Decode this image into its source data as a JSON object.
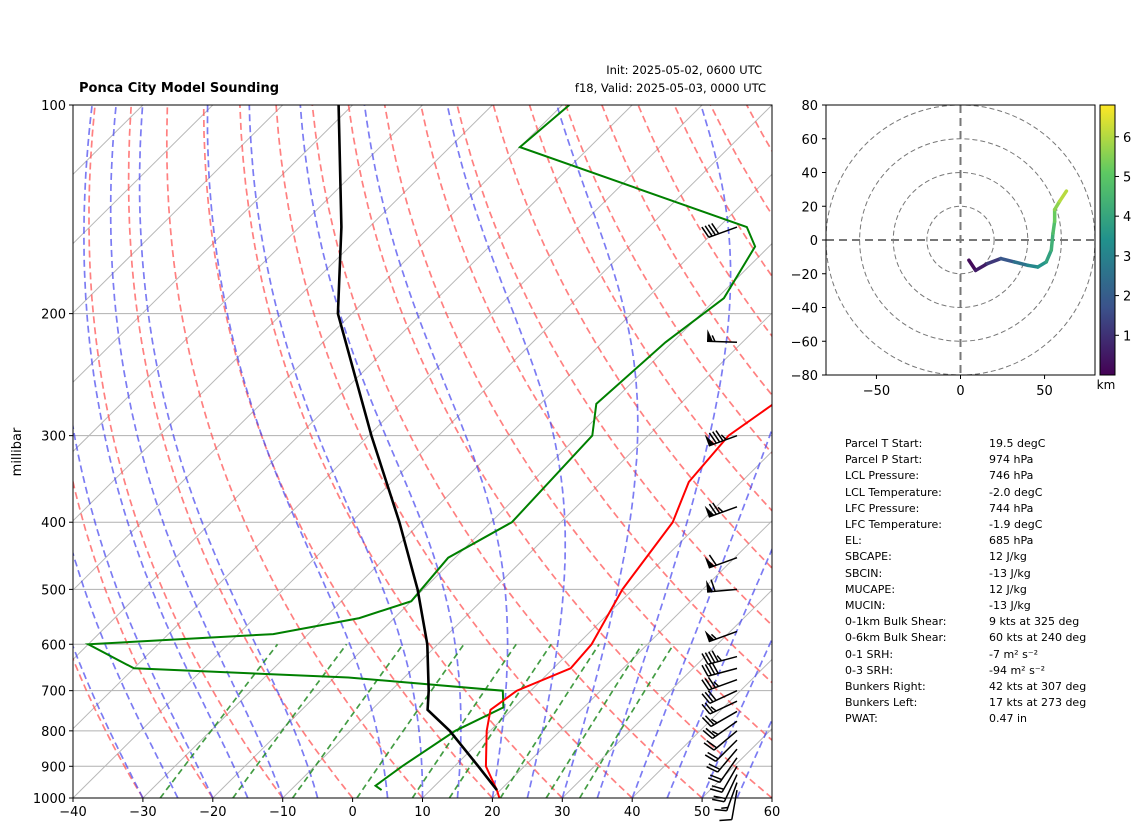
{
  "header": {
    "title": "Ponca City Model Sounding",
    "init": "Init: 2025-05-02, 0600 UTC",
    "valid": "f18, Valid: 2025-05-03, 0000 UTC"
  },
  "chart_data": [
    {
      "type": "skew-t",
      "ylabel": "millibar",
      "yscale": "log",
      "ylim": [
        1000,
        100
      ],
      "xlim": [
        -40,
        60
      ],
      "x_ticks": [
        "−40",
        "−30",
        "−20",
        "−10",
        "0",
        "10",
        "20",
        "30",
        "40",
        "50",
        "60"
      ],
      "y_ticks": [
        "100",
        "200",
        "300",
        "400",
        "500",
        "600",
        "700",
        "800",
        "900",
        "1000"
      ],
      "x_tick_values": [
        -40,
        -30,
        -20,
        -10,
        0,
        10,
        20,
        30,
        40,
        50,
        60
      ],
      "y_tick_values": [
        100,
        200,
        300,
        400,
        500,
        600,
        700,
        800,
        900,
        1000
      ],
      "grid": true,
      "colors": {
        "temperature": "#ff0000",
        "dewpoint": "#008000",
        "parcel": "#000000",
        "dry_adiabat": "#ff5555",
        "moist_adiabat": "#4444ee",
        "mixing_ratio": "#228b22",
        "isotherm": "#999999",
        "zero_isotherm": "#7a2ad6"
      },
      "temperature": [
        {
          "p": 1000,
          "t": 21
        },
        {
          "p": 974,
          "t": 19.5
        },
        {
          "p": 900,
          "t": 14.5
        },
        {
          "p": 800,
          "t": 9.5
        },
        {
          "p": 746,
          "t": 7
        },
        {
          "p": 700,
          "t": 8
        },
        {
          "p": 650,
          "t": 12.5
        },
        {
          "p": 600,
          "t": 12
        },
        {
          "p": 500,
          "t": 8.5
        },
        {
          "p": 400,
          "t": 6
        },
        {
          "p": 350,
          "t": 2.5
        },
        {
          "p": 300,
          "t": 1.5
        },
        {
          "p": 260,
          "t": 4
        },
        {
          "p": 220,
          "t": 10
        },
        {
          "p": 180,
          "t": 16
        },
        {
          "p": 150,
          "t": 20
        },
        {
          "p": 120,
          "t": 26
        },
        {
          "p": 100,
          "t": 30
        }
      ],
      "dewpoint": [
        {
          "p": 974,
          "t": 3
        },
        {
          "p": 960,
          "t": 1.5
        },
        {
          "p": 900,
          "t": 2.5
        },
        {
          "p": 800,
          "t": 5
        },
        {
          "p": 740,
          "t": 8.5
        },
        {
          "p": 700,
          "t": 6
        },
        {
          "p": 670,
          "t": -18
        },
        {
          "p": 650,
          "t": -50
        },
        {
          "p": 600,
          "t": -60
        },
        {
          "p": 580,
          "t": -35
        },
        {
          "p": 550,
          "t": -25
        },
        {
          "p": 520,
          "t": -20
        },
        {
          "p": 450,
          "t": -21
        },
        {
          "p": 400,
          "t": -17
        },
        {
          "p": 300,
          "t": -18
        },
        {
          "p": 270,
          "t": -22
        },
        {
          "p": 220,
          "t": -21
        },
        {
          "p": 190,
          "t": -19
        },
        {
          "p": 160,
          "t": -22
        },
        {
          "p": 150,
          "t": -26
        },
        {
          "p": 115,
          "t": -70
        },
        {
          "p": 100,
          "t": -69
        }
      ],
      "parcel": [
        {
          "p": 974,
          "t": 19.5
        },
        {
          "p": 900,
          "t": 13.4
        },
        {
          "p": 800,
          "t": 4.2
        },
        {
          "p": 746,
          "t": -2
        },
        {
          "p": 700,
          "t": -4.6
        },
        {
          "p": 600,
          "t": -11.5
        },
        {
          "p": 500,
          "t": -20.8
        },
        {
          "p": 400,
          "t": -33.1
        },
        {
          "p": 300,
          "t": -49.6
        },
        {
          "p": 200,
          "t": -72
        },
        {
          "p": 150,
          "t": -84
        },
        {
          "p": 100,
          "t": -102
        }
      ],
      "wind_barbs": [
        {
          "p": 974,
          "speed_kts": 10,
          "dir_deg": 190
        },
        {
          "p": 950,
          "speed_kts": 15,
          "dir_deg": 200
        },
        {
          "p": 925,
          "speed_kts": 20,
          "dir_deg": 205
        },
        {
          "p": 900,
          "speed_kts": 20,
          "dir_deg": 210
        },
        {
          "p": 875,
          "speed_kts": 20,
          "dir_deg": 215
        },
        {
          "p": 850,
          "speed_kts": 20,
          "dir_deg": 220
        },
        {
          "p": 825,
          "speed_kts": 20,
          "dir_deg": 225
        },
        {
          "p": 800,
          "speed_kts": 20,
          "dir_deg": 230
        },
        {
          "p": 775,
          "speed_kts": 25,
          "dir_deg": 235
        },
        {
          "p": 750,
          "speed_kts": 25,
          "dir_deg": 240
        },
        {
          "p": 725,
          "speed_kts": 25,
          "dir_deg": 245
        },
        {
          "p": 700,
          "speed_kts": 30,
          "dir_deg": 245
        },
        {
          "p": 675,
          "speed_kts": 35,
          "dir_deg": 250
        },
        {
          "p": 650,
          "speed_kts": 40,
          "dir_deg": 255
        },
        {
          "p": 625,
          "speed_kts": 45,
          "dir_deg": 255
        },
        {
          "p": 575,
          "speed_kts": 55,
          "dir_deg": 250
        },
        {
          "p": 500,
          "speed_kts": 60,
          "dir_deg": 265
        },
        {
          "p": 450,
          "speed_kts": 60,
          "dir_deg": 250
        },
        {
          "p": 380,
          "speed_kts": 75,
          "dir_deg": 250
        },
        {
          "p": 300,
          "speed_kts": 85,
          "dir_deg": 250
        },
        {
          "p": 220,
          "speed_kts": 55,
          "dir_deg": 272
        },
        {
          "p": 150,
          "speed_kts": 40,
          "dir_deg": 250
        }
      ]
    },
    {
      "type": "hodograph",
      "xlim": [
        -80,
        80
      ],
      "ylim": [
        -80,
        80
      ],
      "x_ticks": [
        "−50",
        "0",
        "50"
      ],
      "y_ticks": [
        "80",
        "60",
        "40",
        "20",
        "0",
        "−20",
        "−40",
        "−60",
        "−80"
      ],
      "x_tick_values": [
        -50,
        0,
        50
      ],
      "y_tick_values": [
        80,
        60,
        40,
        20,
        0,
        -20,
        -40,
        -60,
        -80
      ],
      "rings": [
        20,
        40,
        60,
        80
      ],
      "colorbar": {
        "label": "km",
        "ticks": [
          "1",
          "2",
          "3",
          "4",
          "5",
          "6"
        ],
        "tick_values": [
          1,
          2,
          3,
          4,
          5,
          6
        ],
        "range": [
          0,
          6.8
        ],
        "colors": [
          "#440154",
          "#3b528b",
          "#21918c",
          "#5ec962",
          "#fde725"
        ]
      },
      "points": [
        {
          "u": 5,
          "v": -12,
          "h": 0.1
        },
        {
          "u": 9,
          "v": -18,
          "h": 0.3
        },
        {
          "u": 16,
          "v": -14,
          "h": 0.8
        },
        {
          "u": 24,
          "v": -11,
          "h": 1.5
        },
        {
          "u": 32,
          "v": -13,
          "h": 2.2
        },
        {
          "u": 40,
          "v": -15,
          "h": 2.9
        },
        {
          "u": 46,
          "v": -16,
          "h": 3.3
        },
        {
          "u": 51,
          "v": -13,
          "h": 3.7
        },
        {
          "u": 54,
          "v": -6,
          "h": 4.1
        },
        {
          "u": 55,
          "v": 4,
          "h": 4.5
        },
        {
          "u": 56,
          "v": 11,
          "h": 5.0
        },
        {
          "u": 56,
          "v": 18,
          "h": 5.4
        },
        {
          "u": 59,
          "v": 23,
          "h": 5.8
        },
        {
          "u": 63,
          "v": 29,
          "h": 6.3
        }
      ]
    }
  ],
  "parameters": [
    {
      "label": "Parcel T Start:",
      "value": "19.5 degC"
    },
    {
      "label": "Parcel P Start:",
      "value": "974 hPa"
    },
    {
      "label": "LCL Pressure:",
      "value": "746 hPa"
    },
    {
      "label": "LCL Temperature:",
      "value": "-2.0 degC"
    },
    {
      "label": "LFC Pressure:",
      "value": "744 hPa"
    },
    {
      "label": "LFC Temperature:",
      "value": "-1.9 degC"
    },
    {
      "label": "EL:",
      "value": "685 hPa"
    },
    {
      "label": "SBCAPE:",
      "value": "12 J/kg"
    },
    {
      "label": "SBCIN:",
      "value": "-13 J/kg"
    },
    {
      "label": "MUCAPE:",
      "value": "12 J/kg"
    },
    {
      "label": "MUCIN:",
      "value": "-13 J/kg"
    },
    {
      "label": "0-1km Bulk Shear:",
      "value": "9 kts at 325 deg"
    },
    {
      "label": "0-6km Bulk Shear:",
      "value": "60 kts at 240 deg"
    },
    {
      "label": "0-1 SRH:",
      "value": "-7 m² s⁻²"
    },
    {
      "label": "0-3 SRH:",
      "value": "-94 m² s⁻²"
    },
    {
      "label": "Bunkers Right:",
      "value": "42 kts at 307 deg"
    },
    {
      "label": "Bunkers Left:",
      "value": "17 kts at 273 deg"
    },
    {
      "label": "PWAT:",
      "value": "0.47 in"
    }
  ]
}
